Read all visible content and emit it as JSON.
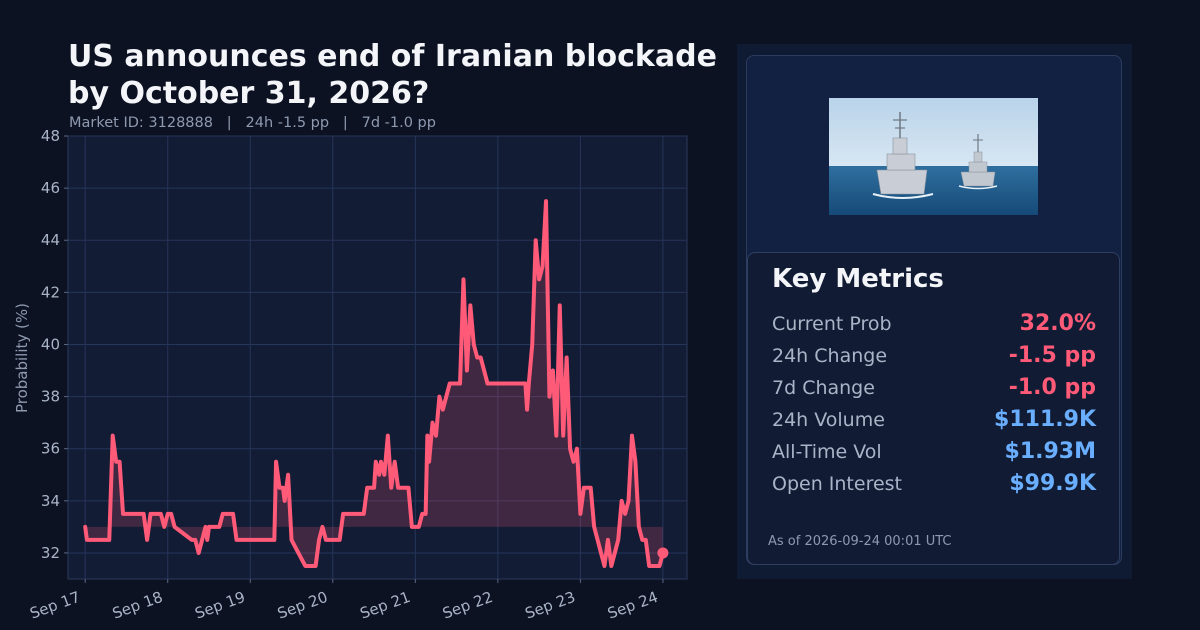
{
  "title": "US announces end of Iranian blockade by October 31, 2026?",
  "subtitle": "Market ID: 3128888   |   24h -1.5 pp   |   7d -1.0 pp",
  "colors": {
    "background": "#0c1222",
    "plot_bg": "#121c35",
    "line": "#ff5a78",
    "positive_value": "#6aaeff",
    "negative_value": "#ff5a78"
  },
  "chart_data": {
    "type": "line",
    "title": "",
    "xlabel": "",
    "ylabel": "Probability (%)",
    "ylim": [
      31,
      48
    ],
    "yticks": [
      32,
      34,
      36,
      38,
      40,
      42,
      44,
      46,
      48
    ],
    "xlim": [
      "Sep 16 19:00",
      "Sep 24 07:00"
    ],
    "xticks": [
      "Sep 17",
      "Sep 18",
      "Sep 19",
      "Sep 20",
      "Sep 21",
      "Sep 22",
      "Sep 23",
      "Sep 24"
    ],
    "grid": true,
    "baseline_fill": 33,
    "series": [
      {
        "points": [
          [
            "Sep 17 00:00",
            33.0
          ],
          [
            "Sep 17 00:30",
            32.5
          ],
          [
            "Sep 17 07:00",
            32.5
          ],
          [
            "Sep 17 08:00",
            36.5
          ],
          [
            "Sep 17 09:00",
            35.5
          ],
          [
            "Sep 17 10:00",
            35.5
          ],
          [
            "Sep 17 11:00",
            33.5
          ],
          [
            "Sep 17 17:00",
            33.5
          ],
          [
            "Sep 17 18:00",
            32.5
          ],
          [
            "Sep 17 19:00",
            33.5
          ],
          [
            "Sep 17 22:00",
            33.5
          ],
          [
            "Sep 17 23:00",
            33.0
          ],
          [
            "Sep 18 00:00",
            33.5
          ],
          [
            "Sep 18 01:00",
            33.5
          ],
          [
            "Sep 18 02:00",
            33.0
          ],
          [
            "Sep 18 07:00",
            32.5
          ],
          [
            "Sep 18 08:00",
            32.5
          ],
          [
            "Sep 18 09:00",
            32.0
          ],
          [
            "Sep 18 10:00",
            32.5
          ],
          [
            "Sep 18 11:00",
            33.0
          ],
          [
            "Sep 18 11:30",
            32.5
          ],
          [
            "Sep 18 12:00",
            33.0
          ],
          [
            "Sep 18 15:00",
            33.0
          ],
          [
            "Sep 18 16:00",
            33.5
          ],
          [
            "Sep 18 19:00",
            33.5
          ],
          [
            "Sep 18 20:00",
            32.5
          ],
          [
            "Sep 19 07:00",
            32.5
          ],
          [
            "Sep 19 07:30",
            35.5
          ],
          [
            "Sep 19 08:30",
            34.5
          ],
          [
            "Sep 19 09:30",
            34.5
          ],
          [
            "Sep 19 10:00",
            34.0
          ],
          [
            "Sep 19 11:00",
            35.0
          ],
          [
            "Sep 19 12:00",
            32.5
          ],
          [
            "Sep 19 14:00",
            32.0
          ],
          [
            "Sep 19 16:00",
            31.5
          ],
          [
            "Sep 19 19:00",
            31.5
          ],
          [
            "Sep 19 20:00",
            32.5
          ],
          [
            "Sep 19 21:00",
            33.0
          ],
          [
            "Sep 19 22:00",
            32.5
          ],
          [
            "Sep 20 02:00",
            32.5
          ],
          [
            "Sep 20 03:00",
            33.5
          ],
          [
            "Sep 20 09:00",
            33.5
          ],
          [
            "Sep 20 10:00",
            34.5
          ],
          [
            "Sep 20 12:00",
            34.5
          ],
          [
            "Sep 20 12:30",
            35.5
          ],
          [
            "Sep 20 13:30",
            35.0
          ],
          [
            "Sep 20 14:00",
            35.5
          ],
          [
            "Sep 20 15:00",
            35.0
          ],
          [
            "Sep 20 16:00",
            36.5
          ],
          [
            "Sep 20 17:00",
            34.5
          ],
          [
            "Sep 20 18:00",
            35.5
          ],
          [
            "Sep 20 19:00",
            34.5
          ],
          [
            "Sep 20 22:00",
            34.5
          ],
          [
            "Sep 20 23:00",
            33.0
          ],
          [
            "Sep 21 01:00",
            33.0
          ],
          [
            "Sep 21 02:00",
            33.5
          ],
          [
            "Sep 21 03:00",
            33.5
          ],
          [
            "Sep 21 03:30",
            36.5
          ],
          [
            "Sep 21 04:00",
            35.5
          ],
          [
            "Sep 21 05:00",
            37.0
          ],
          [
            "Sep 21 06:00",
            36.5
          ],
          [
            "Sep 21 07:00",
            38.0
          ],
          [
            "Sep 21 08:00",
            37.5
          ],
          [
            "Sep 21 10:00",
            38.5
          ],
          [
            "Sep 21 13:00",
            38.5
          ],
          [
            "Sep 21 14:00",
            42.5
          ],
          [
            "Sep 21 15:00",
            39.0
          ],
          [
            "Sep 21 16:00",
            41.5
          ],
          [
            "Sep 21 17:00",
            40.0
          ],
          [
            "Sep 21 18:00",
            39.5
          ],
          [
            "Sep 21 19:00",
            39.5
          ],
          [
            "Sep 21 20:00",
            39.0
          ],
          [
            "Sep 21 21:00",
            38.5
          ],
          [
            "Sep 22 08:00",
            38.5
          ],
          [
            "Sep 22 08:30",
            37.5
          ],
          [
            "Sep 22 09:00",
            38.5
          ],
          [
            "Sep 22 10:00",
            40.0
          ],
          [
            "Sep 22 11:00",
            44.0
          ],
          [
            "Sep 22 12:00",
            42.5
          ],
          [
            "Sep 22 13:00",
            43.0
          ],
          [
            "Sep 22 14:00",
            45.5
          ],
          [
            "Sep 22 15:00",
            38.0
          ],
          [
            "Sep 22 16:00",
            39.0
          ],
          [
            "Sep 22 17:00",
            36.5
          ],
          [
            "Sep 22 18:00",
            41.5
          ],
          [
            "Sep 22 19:00",
            36.5
          ],
          [
            "Sep 22 20:00",
            39.5
          ],
          [
            "Sep 22 21:00",
            36.0
          ],
          [
            "Sep 22 22:00",
            35.5
          ],
          [
            "Sep 22 23:00",
            36.0
          ],
          [
            "Sep 23 00:00",
            33.5
          ],
          [
            "Sep 23 01:00",
            34.5
          ],
          [
            "Sep 23 03:00",
            34.5
          ],
          [
            "Sep 23 04:00",
            33.0
          ],
          [
            "Sep 23 05:00",
            32.5
          ],
          [
            "Sep 23 06:00",
            32.0
          ],
          [
            "Sep 23 07:00",
            31.5
          ],
          [
            "Sep 23 08:00",
            32.5
          ],
          [
            "Sep 23 09:00",
            31.5
          ],
          [
            "Sep 23 10:00",
            32.0
          ],
          [
            "Sep 23 11:00",
            32.5
          ],
          [
            "Sep 23 12:00",
            34.0
          ],
          [
            "Sep 23 13:00",
            33.5
          ],
          [
            "Sep 23 14:00",
            34.0
          ],
          [
            "Sep 23 15:00",
            36.5
          ],
          [
            "Sep 23 16:00",
            35.5
          ],
          [
            "Sep 23 17:00",
            33.0
          ],
          [
            "Sep 23 18:00",
            32.5
          ],
          [
            "Sep 23 19:00",
            32.5
          ],
          [
            "Sep 23 20:00",
            31.5
          ],
          [
            "Sep 23 23:00",
            31.5
          ],
          [
            "Sep 24 00:00",
            32.0
          ]
        ],
        "last_point_marker": true
      }
    ]
  },
  "metrics": {
    "title": "Key Metrics",
    "rows": [
      {
        "label": "Current Prob",
        "value": "32.0%",
        "tone": "negative"
      },
      {
        "label": "24h Change",
        "value": "-1.5 pp",
        "tone": "negative"
      },
      {
        "label": "7d Change",
        "value": "-1.0 pp",
        "tone": "negative"
      },
      {
        "label": "24h Volume",
        "value": "$111.9K",
        "tone": "positive"
      },
      {
        "label": "All-Time Vol",
        "value": "$1.93M",
        "tone": "positive"
      },
      {
        "label": "Open Interest",
        "value": "$99.9K",
        "tone": "positive"
      }
    ],
    "as_of": "As of 2026-09-24 00:01 UTC"
  },
  "thumbnail": {
    "icon": "warship-photo-icon"
  }
}
